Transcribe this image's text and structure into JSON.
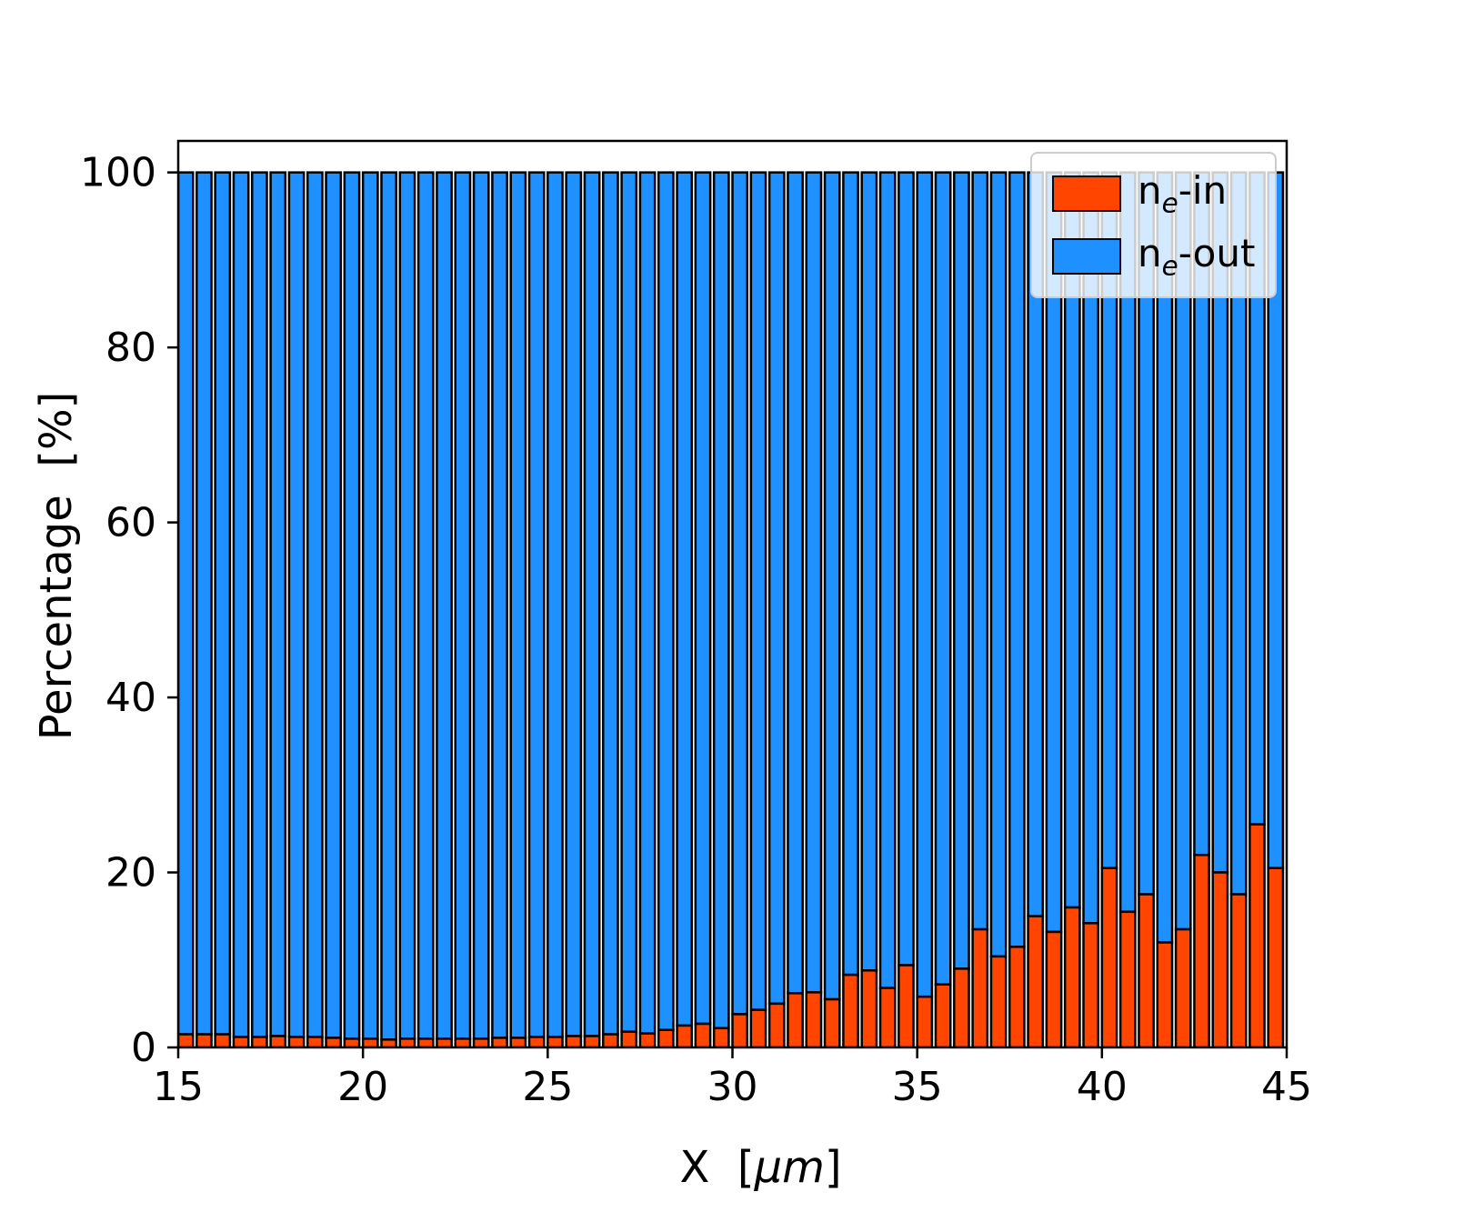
{
  "chart_data": {
    "type": "bar",
    "stacked": true,
    "title": "",
    "xlabel_parts": {
      "prefix": "X  [",
      "italic": "µm",
      "suffix": "]"
    },
    "ylabel": "Percentage  [%]",
    "xlim": [
      15,
      45
    ],
    "ylim": [
      0,
      103.6
    ],
    "xticks": [
      15,
      20,
      25,
      30,
      35,
      40,
      45
    ],
    "yticks": [
      0,
      20,
      40,
      60,
      80,
      100
    ],
    "grid": false,
    "legend_position": "upper right",
    "bar_width": 0.4,
    "bar_step": 0.5,
    "edge_color": "#000000",
    "x": [
      15.0,
      15.5,
      16.0,
      16.5,
      17.0,
      17.5,
      18.0,
      18.5,
      19.0,
      19.5,
      20.0,
      20.5,
      21.0,
      21.5,
      22.0,
      22.5,
      23.0,
      23.5,
      24.0,
      24.5,
      25.0,
      25.5,
      26.0,
      26.5,
      27.0,
      27.5,
      28.0,
      28.5,
      29.0,
      29.5,
      30.0,
      30.5,
      31.0,
      31.5,
      32.0,
      32.5,
      33.0,
      33.5,
      34.0,
      34.5,
      35.0,
      35.5,
      36.0,
      36.5,
      37.0,
      37.5,
      38.0,
      38.5,
      39.0,
      39.5,
      40.0,
      40.5,
      41.0,
      41.5,
      42.0,
      42.5,
      43.0,
      43.5,
      44.0,
      44.5
    ],
    "series": [
      {
        "name": "ne-in",
        "color": "#FF4500",
        "values": [
          1.5,
          1.5,
          1.5,
          1.2,
          1.2,
          1.3,
          1.2,
          1.2,
          1.1,
          1.0,
          1.0,
          0.9,
          1.0,
          1.0,
          1.0,
          1.0,
          1.0,
          1.1,
          1.1,
          1.2,
          1.2,
          1.3,
          1.3,
          1.5,
          1.8,
          1.6,
          2.0,
          2.5,
          2.7,
          2.2,
          3.8,
          4.3,
          5.0,
          6.2,
          6.3,
          5.5,
          8.3,
          8.8,
          6.8,
          9.4,
          5.8,
          7.2,
          9.0,
          13.5,
          10.4,
          11.5,
          15.0,
          13.2,
          16.0,
          14.2,
          20.5,
          15.5,
          17.5,
          12.0,
          13.5,
          22.0,
          20.0,
          17.5,
          25.5,
          20.5
        ]
      },
      {
        "name": "ne-out",
        "color": "#1E90FF",
        "values": [
          98.5,
          98.5,
          98.5,
          98.8,
          98.8,
          98.7,
          98.8,
          98.8,
          98.9,
          99.0,
          99.0,
          99.1,
          99.0,
          99.0,
          99.0,
          99.0,
          99.0,
          98.9,
          98.9,
          98.8,
          98.8,
          98.7,
          98.7,
          98.5,
          98.2,
          98.4,
          98.0,
          97.5,
          97.3,
          97.8,
          96.2,
          95.7,
          95.0,
          93.8,
          93.7,
          94.5,
          91.7,
          91.2,
          93.2,
          90.6,
          94.2,
          92.8,
          91.0,
          86.5,
          89.6,
          88.5,
          85.0,
          86.8,
          84.0,
          85.8,
          79.5,
          84.5,
          82.5,
          88.0,
          86.5,
          78.0,
          80.0,
          82.5,
          74.5,
          79.5
        ]
      }
    ],
    "series_labels": {
      "in": {
        "base": "n",
        "sub": "e",
        "rest": "-in"
      },
      "out": {
        "base": "n",
        "sub": "e",
        "rest": "-out"
      }
    }
  }
}
